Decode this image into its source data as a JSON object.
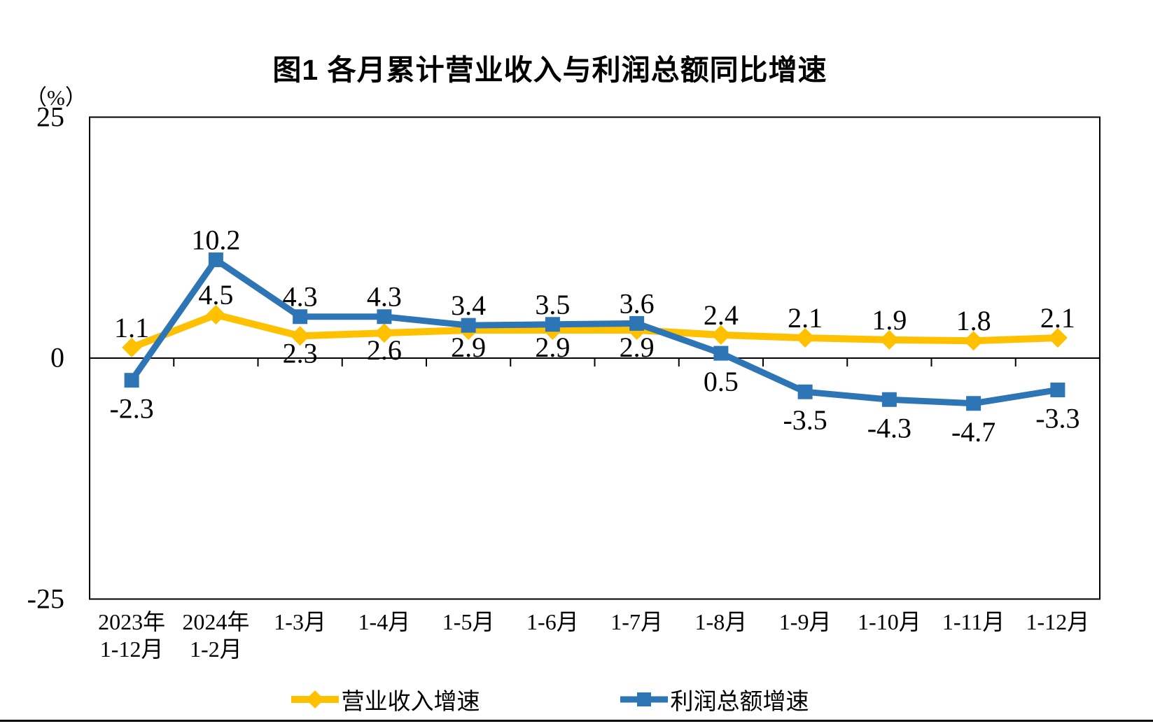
{
  "page": {
    "bottom_rule": true
  },
  "chart_data": {
    "type": "line",
    "title": "图1  各月累计营业收入与利润总额同比增速",
    "ylabel": "（%）",
    "xlabel": "",
    "ylim": [
      -25,
      25
    ],
    "y_ticks": [
      25,
      0,
      -25
    ],
    "grid": false,
    "legend_position": "bottom",
    "categories": [
      "2023年\n1-12月",
      "2024年\n1-2月",
      "1-3月",
      "1-4月",
      "1-5月",
      "1-6月",
      "1-7月",
      "1-8月",
      "1-9月",
      "1-10月",
      "1-11月",
      "1-12月"
    ],
    "series": [
      {
        "name": "营业收入增速",
        "color": "#FFC000",
        "marker": "diamond",
        "line_width": 10,
        "values": [
          1.1,
          4.5,
          2.3,
          2.6,
          2.9,
          2.9,
          2.9,
          2.4,
          2.1,
          1.9,
          1.8,
          2.1
        ],
        "label_side": [
          "above",
          "above",
          "below",
          "below",
          "below",
          "below",
          "below",
          "above",
          "above",
          "above",
          "above",
          "above"
        ]
      },
      {
        "name": "利润总额增速",
        "color": "#2E75B6",
        "marker": "square",
        "line_width": 9,
        "values": [
          -2.3,
          10.2,
          4.3,
          4.3,
          3.4,
          3.5,
          3.6,
          0.5,
          -3.5,
          -4.3,
          -4.7,
          -3.3
        ],
        "label_side": [
          "below",
          "above",
          "above",
          "above",
          "above",
          "above",
          "above",
          "below",
          "below",
          "below",
          "below",
          "below"
        ]
      }
    ],
    "axis_color": "#000000"
  }
}
